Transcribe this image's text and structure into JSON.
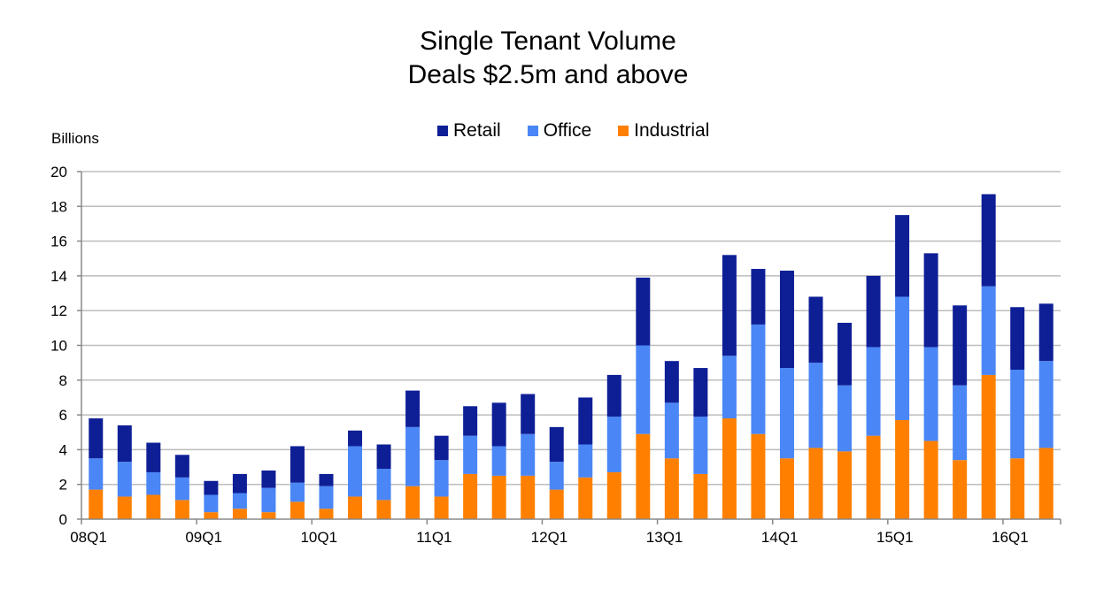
{
  "chart_data": {
    "type": "bar",
    "stacked": true,
    "title": "Single Tenant Volume",
    "subtitle": "Deals $2.5m and above",
    "ylabel": "Billions",
    "ylim": [
      0,
      20
    ],
    "yticks": [
      0,
      2,
      4,
      6,
      8,
      10,
      12,
      14,
      16,
      18,
      20
    ],
    "grid": true,
    "legend_position": "top-center",
    "x_tick_labels": [
      "08Q1",
      "09Q1",
      "10Q1",
      "11Q1",
      "12Q1",
      "13Q1",
      "14Q1",
      "15Q1",
      "16Q1"
    ],
    "categories": [
      "08Q1",
      "08Q2",
      "08Q3",
      "08Q4",
      "09Q1",
      "09Q2",
      "09Q3",
      "09Q4",
      "10Q1",
      "10Q2",
      "10Q3",
      "10Q4",
      "11Q1",
      "11Q2",
      "11Q3",
      "11Q4",
      "12Q1",
      "12Q2",
      "12Q3",
      "12Q4",
      "13Q1",
      "13Q2",
      "13Q3",
      "13Q4",
      "14Q1",
      "14Q2",
      "14Q3",
      "14Q4",
      "15Q1",
      "15Q2",
      "15Q3",
      "15Q4",
      "16Q1",
      "16Q2"
    ],
    "series": [
      {
        "name": "Industrial",
        "color": "#FF8000",
        "values": [
          1.7,
          1.3,
          1.4,
          1.1,
          0.4,
          0.6,
          0.4,
          1.0,
          0.6,
          1.3,
          1.1,
          1.9,
          1.3,
          2.6,
          2.5,
          2.5,
          1.7,
          2.4,
          2.7,
          4.9,
          3.5,
          2.6,
          5.8,
          4.9,
          3.5,
          4.1,
          3.9,
          4.8,
          5.7,
          4.5,
          3.4,
          8.3,
          3.5,
          4.1
        ]
      },
      {
        "name": "Office",
        "color": "#4A86F5",
        "values": [
          1.8,
          2.0,
          1.3,
          1.3,
          1.0,
          0.9,
          1.4,
          1.1,
          1.3,
          2.9,
          1.8,
          3.4,
          2.1,
          2.2,
          1.7,
          2.4,
          1.6,
          1.9,
          3.2,
          5.1,
          3.2,
          3.3,
          3.6,
          6.3,
          5.2,
          4.9,
          3.8,
          5.1,
          7.1,
          5.4,
          4.3,
          5.1,
          5.1,
          5.0
        ]
      },
      {
        "name": "Retail",
        "color": "#0E1F96",
        "values": [
          2.3,
          2.1,
          1.7,
          1.3,
          0.8,
          1.1,
          1.0,
          2.1,
          0.7,
          0.9,
          1.4,
          2.1,
          1.4,
          1.7,
          2.5,
          2.3,
          2.0,
          2.7,
          2.4,
          3.9,
          2.4,
          2.8,
          5.8,
          3.2,
          5.6,
          3.8,
          3.6,
          4.1,
          4.7,
          5.4,
          4.6,
          5.3,
          3.6,
          3.3
        ]
      }
    ]
  }
}
